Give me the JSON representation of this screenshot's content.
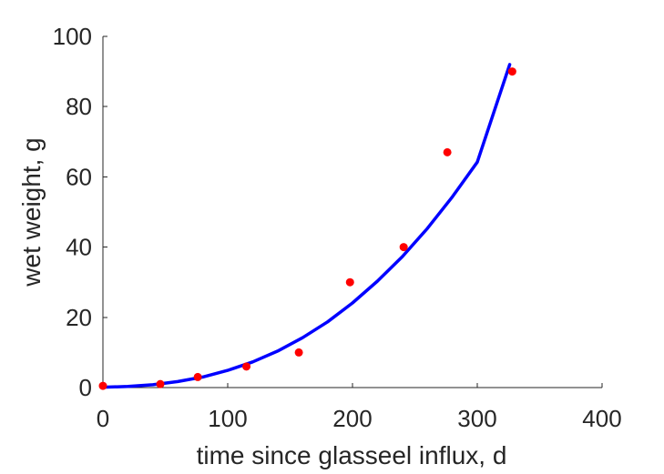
{
  "chart_data": {
    "type": "scatter",
    "title": "",
    "xlabel": "time since glasseel influx, d",
    "ylabel": "wet weight, g",
    "xlim": [
      0,
      400
    ],
    "ylim": [
      0,
      100
    ],
    "xticks": [
      "0",
      "100",
      "200",
      "300",
      "400"
    ],
    "yticks": [
      "0",
      "20",
      "40",
      "60",
      "80",
      "100"
    ],
    "grid": false,
    "legend": "none",
    "series": [
      {
        "kind": "points",
        "color": "#ff0000",
        "x": [
          0,
          46,
          76,
          115,
          157,
          198,
          241,
          276,
          328
        ],
        "y": [
          0.5,
          1,
          3,
          6,
          10,
          30,
          40,
          67,
          90
        ]
      },
      {
        "kind": "fit-line",
        "color": "#0000ff",
        "x": [
          0,
          20,
          40,
          60,
          80,
          100,
          120,
          140,
          160,
          180,
          200,
          220,
          240,
          260,
          280,
          300,
          326
        ],
        "y": [
          0.1,
          0.3,
          0.8,
          1.7,
          3.0,
          4.9,
          7.3,
          10.4,
          14.2,
          18.7,
          24.1,
          30.3,
          37.3,
          45.3,
          54.3,
          64.2,
          92.0
        ]
      }
    ]
  }
}
